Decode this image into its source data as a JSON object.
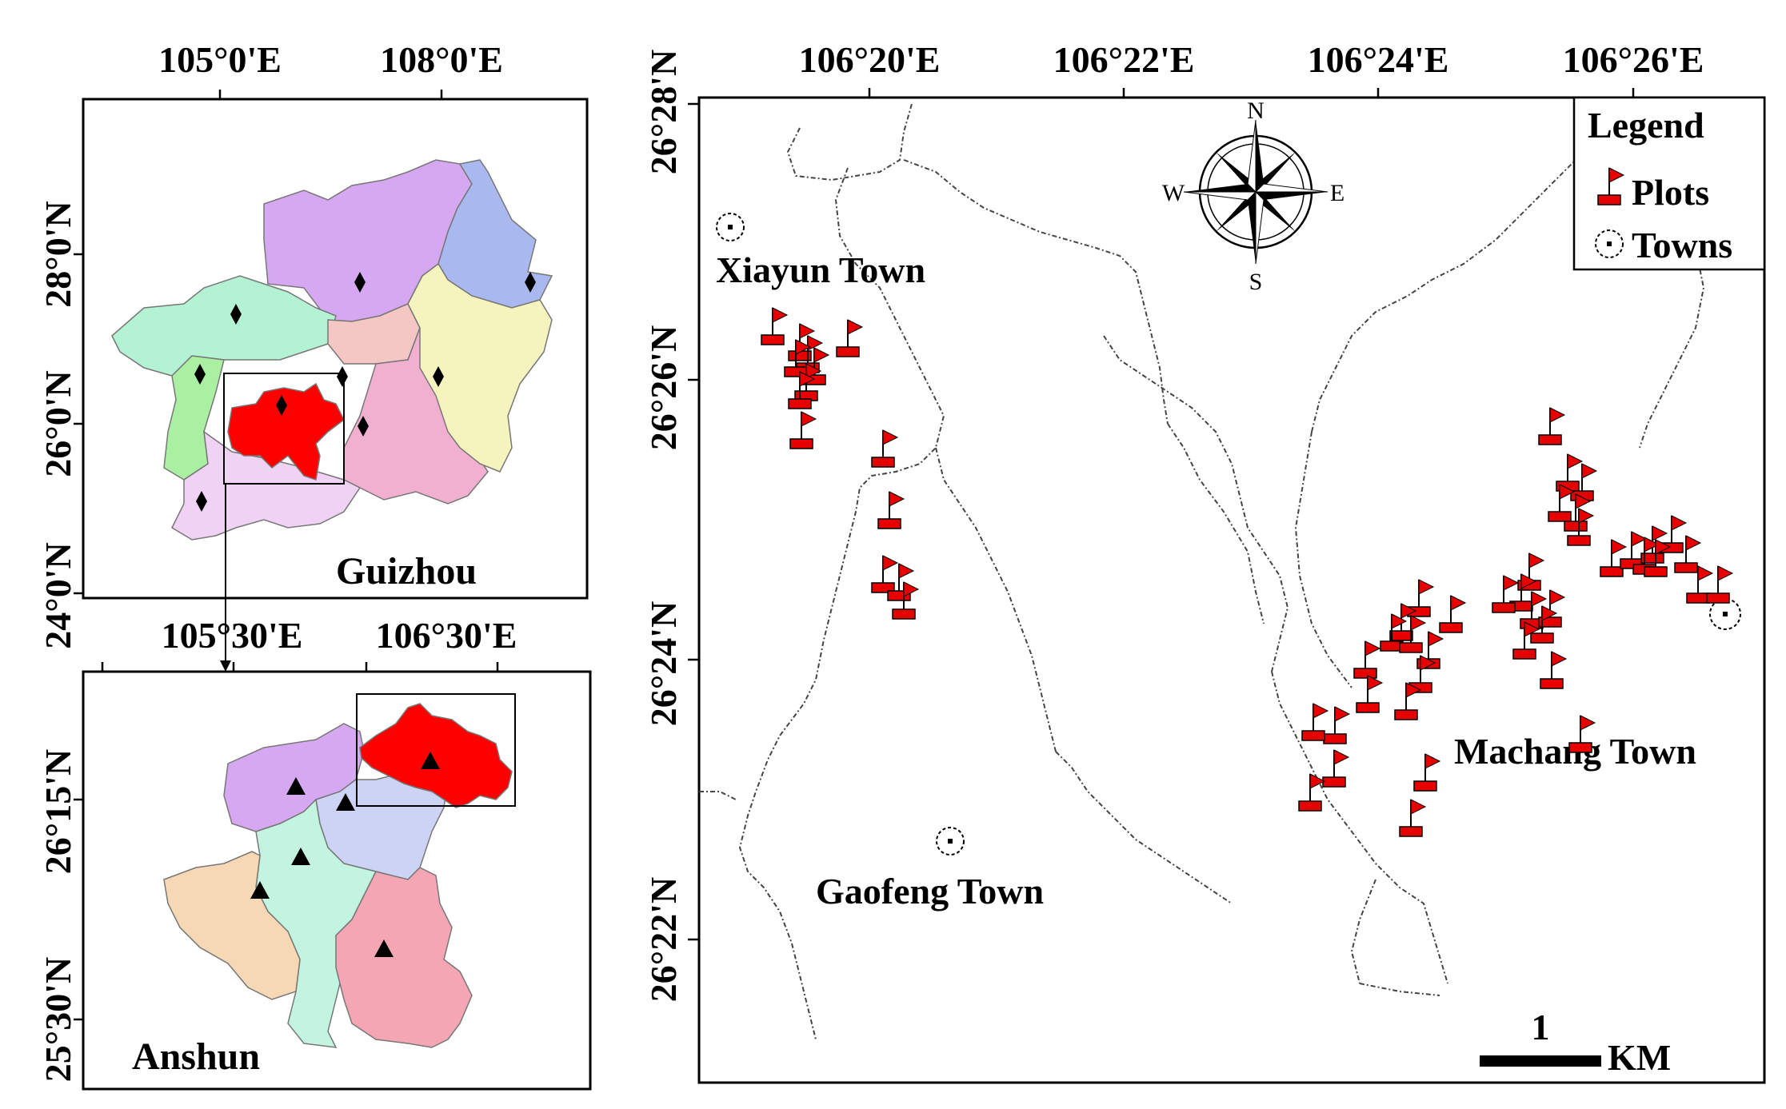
{
  "guizhou_panel": {
    "title": "Guizhou",
    "lon_ticks": [
      "105°0'E",
      "108°0'E"
    ],
    "lat_ticks": [
      "28°0'N",
      "26°0'N",
      "24°0'N"
    ],
    "region_colors": [
      "#d7a8f2",
      "#a9b9f0",
      "#b4f2d4",
      "#f4c7c4",
      "#f2b0d0",
      "#f6f4be",
      "#a9f0a3",
      "#f0d2f4"
    ],
    "highlight_color": "#ff0000",
    "marker": "diamond"
  },
  "anshun_panel": {
    "title": "Anshun",
    "lon_ticks": [
      "105°30'E",
      "106°30'E"
    ],
    "lat_ticks": [
      "26°15'N",
      "25°30'N"
    ],
    "region_colors": [
      "#d7a8f2",
      "#ccd3f4",
      "#c2f4e0",
      "#f6d8b4",
      "#f4a6b4"
    ],
    "highlight_color": "#ff0000",
    "marker": "triangle"
  },
  "study_area": {
    "lon_ticks": [
      "106°20'E",
      "106°22'E",
      "106°24'E",
      "106°26'E"
    ],
    "lat_ticks": [
      "26°28'N",
      "26°26'N",
      "26°24'N",
      "26°22'N"
    ],
    "towns": [
      {
        "name": "Xiayun Town"
      },
      {
        "name": "Gaofeng Town"
      },
      {
        "name": "Machang Town"
      }
    ],
    "compass": {
      "n": "N",
      "s": "S",
      "e": "E",
      "w": "W"
    },
    "legend": {
      "title": "Legend",
      "plots": "Plots",
      "towns": "Towns"
    },
    "scale": {
      "value": "1",
      "unit": "KM"
    },
    "flag_color": "#e60000"
  }
}
